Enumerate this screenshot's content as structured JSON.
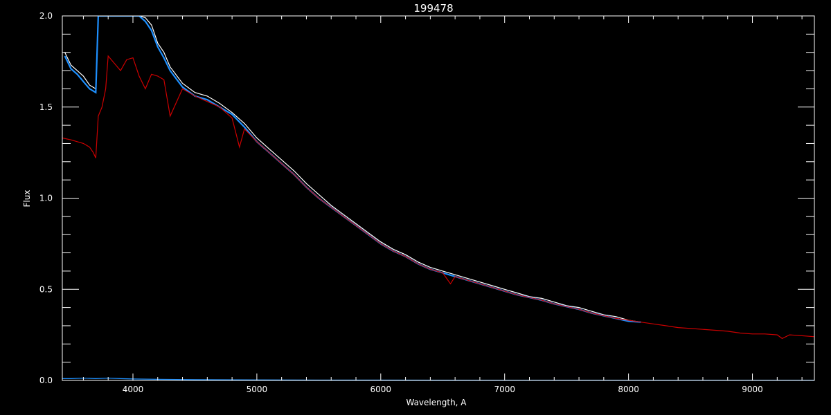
{
  "chart_data": {
    "type": "line",
    "title": "199478",
    "xlabel": "Wavelength, A",
    "ylabel": "Flux",
    "xlim": [
      3430,
      9500
    ],
    "ylim": [
      0,
      2.0
    ],
    "xticks": [
      4000,
      5000,
      6000,
      7000,
      8000,
      9000
    ],
    "xtick_labels": [
      "4000",
      "5000",
      "6000",
      "7000",
      "8000",
      "9000"
    ],
    "yticks": [
      0,
      0.5,
      1.0,
      1.5,
      2.0
    ],
    "ytick_labels": [
      "0.0",
      "0.5",
      "1.0",
      "1.5",
      "2.0"
    ],
    "grid": false,
    "background_color": "#000000",
    "axis_color": "#ffffff",
    "series": [
      {
        "color": "#ffffff",
        "x": [
          3450,
          3500,
          3550,
          3600,
          3650,
          3700,
          3720,
          3750,
          3800,
          3850,
          3900,
          3950,
          4000,
          4050,
          4100,
          4150,
          4200,
          4250,
          4300,
          4400,
          4500,
          4600,
          4700,
          4800,
          4900,
          5000,
          5100,
          5200,
          5300,
          5400,
          5500,
          5600,
          5700,
          5800,
          5900,
          6000,
          6100,
          6200,
          6300,
          6400,
          6500,
          6600,
          6700,
          6800,
          6900,
          7000,
          7100,
          7200,
          7300,
          7400,
          7500,
          7600,
          7700,
          7800,
          7900,
          8000,
          8100
        ],
        "y": [
          1.8,
          1.73,
          1.7,
          1.67,
          1.62,
          1.6,
          2.0,
          2.0,
          2.0,
          2.0,
          2.0,
          2.0,
          2.0,
          2.0,
          1.99,
          1.95,
          1.85,
          1.8,
          1.72,
          1.63,
          1.58,
          1.56,
          1.52,
          1.47,
          1.41,
          1.33,
          1.27,
          1.21,
          1.15,
          1.08,
          1.02,
          0.96,
          0.91,
          0.86,
          0.81,
          0.76,
          0.72,
          0.69,
          0.65,
          0.62,
          0.6,
          0.58,
          0.56,
          0.54,
          0.52,
          0.5,
          0.48,
          0.46,
          0.45,
          0.43,
          0.41,
          0.4,
          0.38,
          0.36,
          0.35,
          0.33,
          0.32
        ]
      },
      {
        "color": "#1e90ff",
        "x": [
          3450,
          3500,
          3550,
          3600,
          3650,
          3700,
          3720,
          3750,
          3800,
          3850,
          3900,
          3950,
          4000,
          4050,
          4100,
          4150,
          4200,
          4250,
          4300,
          4400,
          4500,
          4600,
          4700,
          4800,
          4900,
          5000,
          5100,
          5200,
          5300,
          5400,
          5500,
          5600,
          5700,
          5800,
          5900,
          6000,
          6100,
          6200,
          6300,
          6400,
          6500,
          6600,
          6700,
          6800,
          6900,
          7000,
          7100,
          7200,
          7300,
          7400,
          7500,
          7600,
          7700,
          7800,
          7900,
          8000,
          8100
        ],
        "y": [
          1.78,
          1.71,
          1.68,
          1.64,
          1.6,
          1.58,
          2.0,
          2.0,
          2.0,
          2.0,
          2.0,
          2.0,
          2.0,
          2.0,
          1.97,
          1.92,
          1.83,
          1.77,
          1.7,
          1.61,
          1.56,
          1.54,
          1.5,
          1.46,
          1.39,
          1.31,
          1.25,
          1.19,
          1.13,
          1.06,
          1.0,
          0.95,
          0.9,
          0.85,
          0.8,
          0.75,
          0.71,
          0.68,
          0.64,
          0.61,
          0.59,
          0.57,
          0.55,
          0.53,
          0.51,
          0.49,
          0.47,
          0.455,
          0.44,
          0.42,
          0.405,
          0.39,
          0.37,
          0.355,
          0.34,
          0.325,
          0.32
        ]
      },
      {
        "color": "#cc0000",
        "x": [
          3430,
          3500,
          3550,
          3600,
          3650,
          3680,
          3700,
          3720,
          3750,
          3780,
          3800,
          3850,
          3900,
          3950,
          4000,
          4050,
          4100,
          4150,
          4200,
          4250,
          4300,
          4400,
          4500,
          4600,
          4700,
          4800,
          4860,
          4900,
          5000,
          5100,
          5200,
          5300,
          5400,
          5500,
          5600,
          5700,
          5800,
          5900,
          6000,
          6100,
          6200,
          6300,
          6400,
          6500,
          6563,
          6600,
          6700,
          6800,
          6900,
          7000,
          7100,
          7200,
          7300,
          7400,
          7500,
          7600,
          7700,
          7800,
          7900,
          8000,
          8100,
          8200,
          8300,
          8400,
          8500,
          8600,
          8700,
          8800,
          8900,
          9000,
          9100,
          9200,
          9240,
          9300,
          9400,
          9500
        ],
        "y": [
          1.33,
          1.32,
          1.31,
          1.3,
          1.28,
          1.25,
          1.22,
          1.45,
          1.5,
          1.6,
          1.78,
          1.74,
          1.7,
          1.76,
          1.77,
          1.67,
          1.6,
          1.68,
          1.67,
          1.65,
          1.45,
          1.6,
          1.56,
          1.53,
          1.5,
          1.44,
          1.28,
          1.38,
          1.31,
          1.25,
          1.19,
          1.13,
          1.06,
          1.0,
          0.95,
          0.9,
          0.85,
          0.8,
          0.75,
          0.71,
          0.68,
          0.64,
          0.61,
          0.59,
          0.53,
          0.57,
          0.55,
          0.53,
          0.51,
          0.49,
          0.47,
          0.455,
          0.44,
          0.42,
          0.405,
          0.39,
          0.37,
          0.355,
          0.34,
          0.33,
          0.32,
          0.31,
          0.3,
          0.29,
          0.285,
          0.28,
          0.275,
          0.27,
          0.26,
          0.255,
          0.255,
          0.25,
          0.23,
          0.25,
          0.245,
          0.24
        ]
      },
      {
        "color": "#1e90ff",
        "x": [
          3430,
          3500,
          3600,
          3700,
          3800,
          3900,
          4000,
          4200,
          4500,
          5000,
          5500,
          6000,
          7000,
          8000,
          9000,
          9500
        ],
        "y": [
          0.01,
          0.01,
          0.012,
          0.01,
          0.012,
          0.01,
          0.008,
          0.006,
          0.004,
          0.003,
          0.002,
          0.002,
          0.001,
          0.001,
          0.001,
          0.001
        ]
      }
    ]
  }
}
